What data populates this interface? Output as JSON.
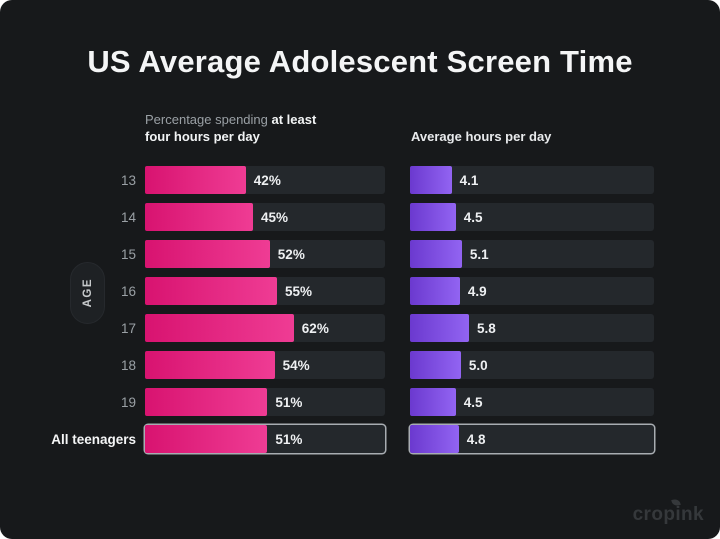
{
  "page": {
    "title": "US Average Adolescent Screen Time",
    "watermark": "cropink"
  },
  "headers": {
    "left_muted": "Percentage spending ",
    "left_bold_inline": "at least",
    "left_bold_line2": "four hours per day",
    "right": "Average hours per day"
  },
  "axis": {
    "label": "AGE"
  },
  "colors": {
    "background": "#17191b",
    "track": "#24282c",
    "pink_start": "#d81370",
    "pink_end": "#ef3c94",
    "purple_start": "#6b39cf",
    "purple_end": "#9264f2",
    "highlight_border": "#a8adb2"
  },
  "chart_data": {
    "type": "bar",
    "orientation": "horizontal",
    "title": "US Average Adolescent Screen Time",
    "categories": [
      "13",
      "14",
      "15",
      "16",
      "17",
      "18",
      "19",
      "All teenagers"
    ],
    "series": [
      {
        "name": "Percentage spending at least four hours per day",
        "values": [
          42,
          45,
          52,
          55,
          62,
          54,
          51,
          51
        ],
        "labels": [
          "42%",
          "45%",
          "52%",
          "55%",
          "62%",
          "54%",
          "51%",
          "51%"
        ],
        "unit": "%",
        "axis_max": 100
      },
      {
        "name": "Average hours per day",
        "values": [
          4.1,
          4.5,
          5.1,
          4.9,
          5.8,
          5.0,
          4.5,
          4.8
        ],
        "labels": [
          "4.1",
          "4.5",
          "5.1",
          "4.9",
          "5.8",
          "5.0",
          "4.5",
          "4.8"
        ],
        "unit": "hours per day",
        "axis_max": 24
      }
    ],
    "highlight_category": "All teenagers",
    "ylabel": "AGE",
    "grid": false,
    "legend_position": "top"
  }
}
